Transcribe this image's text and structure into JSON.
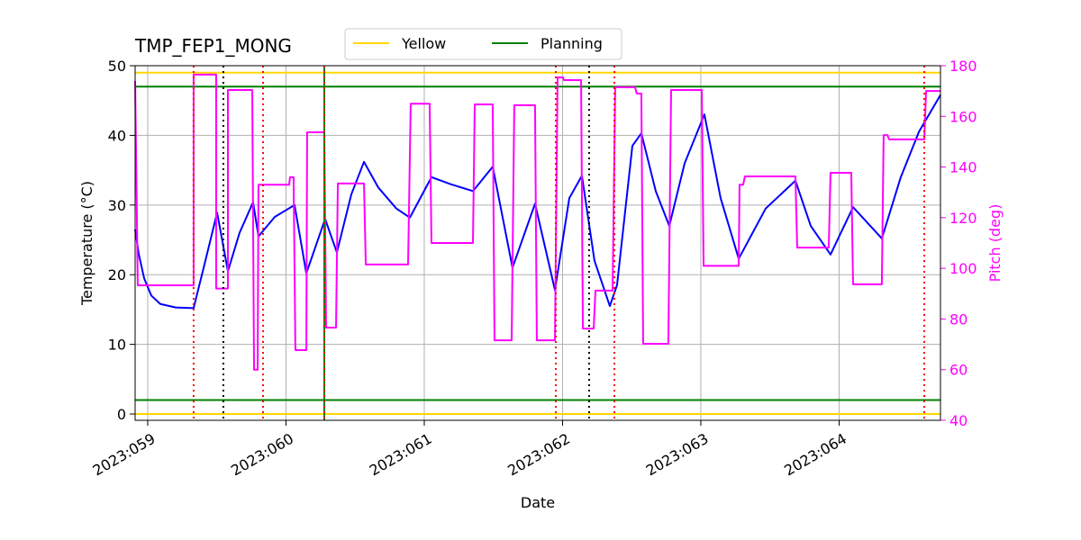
{
  "chart_data": {
    "type": "line",
    "title": "TMP_FEP1_MONG",
    "x_label": "Date",
    "y_label": "Temperature (°C)",
    "y2_label": "Pitch (deg)",
    "xlim": [
      58.909,
      64.733
    ],
    "ylim": [
      -0.9,
      50
    ],
    "y2lim": [
      40,
      180
    ],
    "xticks": [
      {
        "value": 59,
        "label": "2023:059"
      },
      {
        "value": 60,
        "label": "2023:060"
      },
      {
        "value": 61,
        "label": "2023:061"
      },
      {
        "value": 62,
        "label": "2023:062"
      },
      {
        "value": 63,
        "label": "2023:063"
      },
      {
        "value": 64,
        "label": "2023:064"
      }
    ],
    "yticks": [
      0,
      10,
      20,
      30,
      40,
      50
    ],
    "y2ticks": [
      40,
      60,
      80,
      100,
      120,
      140,
      160,
      180
    ],
    "grid": true,
    "y2_color": "magenta",
    "series": [
      {
        "name": "Temperature",
        "color": "blue",
        "axis": "y",
        "x": [
          58.909,
          58.935,
          58.974,
          59.026,
          59.091,
          59.202,
          59.332,
          59.417,
          59.502,
          59.58,
          59.664,
          59.762,
          59.801,
          59.919,
          60.062,
          60.147,
          60.283,
          60.368,
          60.472,
          60.564,
          60.668,
          60.798,
          60.896,
          61.052,
          61.189,
          61.352,
          61.495,
          61.638,
          61.801,
          61.945,
          62.049,
          62.14,
          62.231,
          62.342,
          62.394,
          62.505,
          62.57,
          62.674,
          62.772,
          62.883,
          63.026,
          63.143,
          63.274,
          63.469,
          63.684,
          63.795,
          63.938,
          64.101,
          64.309,
          64.446,
          64.577,
          64.733
        ],
        "values": [
          26.5,
          23,
          19.5,
          17,
          15.8,
          15.3,
          15.2,
          22,
          28.9,
          20.5,
          26,
          30.4,
          25.5,
          28.3,
          30,
          20.2,
          28,
          23.2,
          31.5,
          36.2,
          32.5,
          29.5,
          28.2,
          34,
          33,
          32,
          35.5,
          21,
          30.2,
          17.8,
          31,
          34.2,
          22,
          15.5,
          18.5,
          38.5,
          40.3,
          32,
          27,
          36,
          43,
          31,
          22.3,
          29.5,
          33.5,
          27,
          22.9,
          29.7,
          25.2,
          34,
          40.5,
          45.8
        ]
      },
      {
        "name": "Pitch",
        "color": "magenta",
        "axis": "y2",
        "x": [
          58.909,
          58.928,
          59.332,
          59.332,
          59.495,
          59.495,
          59.58,
          59.58,
          59.756,
          59.769,
          59.795,
          59.801,
          60.023,
          60.029,
          60.055,
          60.068,
          60.147,
          60.153,
          60.277,
          60.29,
          60.362,
          60.375,
          60.564,
          60.577,
          60.883,
          60.902,
          61.039,
          61.052,
          61.352,
          61.365,
          61.495,
          61.508,
          61.632,
          61.651,
          61.801,
          61.814,
          61.945,
          61.964,
          62.003,
          62.01,
          62.134,
          62.147,
          62.225,
          62.238,
          62.362,
          62.381,
          62.524,
          62.537,
          62.57,
          62.583,
          62.765,
          62.785,
          63.007,
          63.02,
          63.274,
          63.28,
          63.306,
          63.319,
          63.684,
          63.697,
          63.925,
          63.938,
          64.088,
          64.101,
          64.309,
          64.322,
          64.349,
          64.362,
          64.616,
          64.629,
          64.733
        ],
        "values": [
          174,
          93.3,
          93.3,
          176.5,
          176.5,
          92,
          92,
          170.4,
          170.4,
          60,
          60,
          133,
          133,
          136,
          136,
          67.7,
          67.7,
          153.7,
          153.7,
          76.6,
          76.6,
          133.5,
          133.5,
          101.5,
          101.5,
          165,
          165,
          110,
          110,
          164.7,
          164.7,
          71.6,
          71.6,
          164.4,
          164.4,
          71.6,
          71.6,
          175.4,
          175.4,
          174.3,
          174.3,
          76.2,
          76.2,
          91.2,
          91.2,
          171.5,
          171.5,
          169,
          169,
          70.2,
          70.2,
          170.4,
          170.4,
          101,
          101,
          133,
          133,
          136.3,
          136.3,
          108.2,
          108.2,
          137.7,
          137.7,
          93.7,
          93.7,
          152.6,
          152.6,
          150.9,
          150.9,
          170,
          170
        ]
      }
    ],
    "limit_lines": [
      {
        "name": "Yellow",
        "color": "gold",
        "values": [
          0,
          49
        ]
      },
      {
        "name": "Planning",
        "color": "green",
        "values": [
          2,
          47
        ]
      }
    ],
    "vlines": [
      {
        "color": "green",
        "dash": "none",
        "x": [
          60.277
        ]
      },
      {
        "color": "red",
        "dash": "2,4",
        "x": [
          59.332,
          59.834,
          60.277,
          61.951,
          62.375,
          64.616
        ]
      },
      {
        "color": "black",
        "dash": "2,4",
        "x": [
          59.547,
          62.192
        ]
      }
    ]
  }
}
